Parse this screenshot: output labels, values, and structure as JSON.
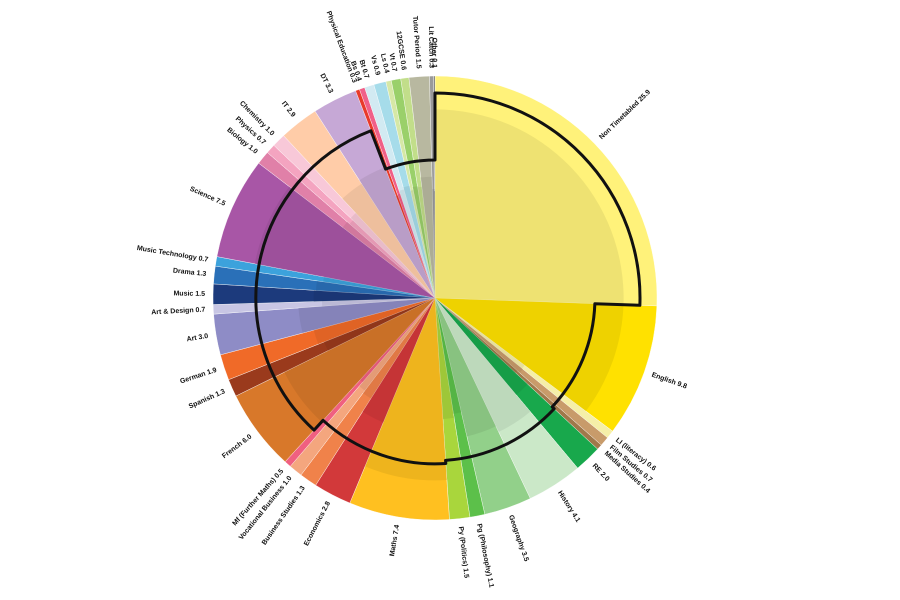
{
  "chart_data": {
    "type": "pie",
    "title": "",
    "unit": "",
    "start_angle_deg": 90,
    "direction": "clockwise",
    "slices": [
      {
        "label": "Non Timetabled",
        "value": 25.9,
        "color": "#FFF27A"
      },
      {
        "label": "English",
        "value": 9.8,
        "color": "#FFE100"
      },
      {
        "label": "LI (literacy)",
        "value": 0.6,
        "color": "#F5EFA8"
      },
      {
        "label": "Film Studies",
        "value": 0.7,
        "color": "#C89B6A"
      },
      {
        "label": "Media Studies",
        "value": 0.4,
        "color": "#A0784A"
      },
      {
        "label": "RE",
        "value": 2.0,
        "color": "#18A84C"
      },
      {
        "label": "History",
        "value": 4.1,
        "color": "#CBE8C8"
      },
      {
        "label": "Geography",
        "value": 3.5,
        "color": "#92D08A"
      },
      {
        "label": "Pg (Philosophy)",
        "value": 1.1,
        "color": "#5CC04A"
      },
      {
        "label": "Py (Politics)",
        "value": 1.5,
        "color": "#A9D63C"
      },
      {
        "label": "Maths",
        "value": 7.4,
        "color": "#FFC020"
      },
      {
        "label": "Economics",
        "value": 2.8,
        "color": "#D2393A"
      },
      {
        "label": "Business Studies",
        "value": 1.3,
        "color": "#F0824A"
      },
      {
        "label": "Vocational Business",
        "value": 1.0,
        "color": "#F4A67E"
      },
      {
        "label": "Mf (Further Maths)",
        "value": 0.5,
        "color": "#F06080"
      },
      {
        "label": "French",
        "value": 6.0,
        "color": "#D8782A"
      },
      {
        "label": "Spanish",
        "value": 1.3,
        "color": "#9A3A1C"
      },
      {
        "label": "German",
        "value": 1.9,
        "color": "#F06A28"
      },
      {
        "label": "Art",
        "value": 3.0,
        "color": "#8E8CC6"
      },
      {
        "label": "Art & Design",
        "value": 0.7,
        "color": "#C8C6E4"
      },
      {
        "label": "Music",
        "value": 1.5,
        "color": "#1C3A7C"
      },
      {
        "label": "Drama",
        "value": 1.3,
        "color": "#2A70B8"
      },
      {
        "label": "Music Technology",
        "value": 0.7,
        "color": "#3CA2DC"
      },
      {
        "label": "Science",
        "value": 7.5,
        "color": "#A856A6"
      },
      {
        "label": "Biology",
        "value": 1.0,
        "color": "#E080A8"
      },
      {
        "label": "Physics",
        "value": 0.7,
        "color": "#F4A4C0"
      },
      {
        "label": "Chemistry",
        "value": 1.0,
        "color": "#F8C8D8"
      },
      {
        "label": "IT",
        "value": 2.9,
        "color": "#FFCCA8"
      },
      {
        "label": "DT",
        "value": 3.3,
        "color": "#C6A8D6"
      },
      {
        "label": "Physical Education",
        "value": 0.3,
        "color": "#E83A2A"
      },
      {
        "label": "Bs",
        "value": 0.4,
        "color": "#F06088"
      },
      {
        "label": "Bt",
        "value": 0.7,
        "color": "#D2EAF2"
      },
      {
        "label": "Vs",
        "value": 0.9,
        "color": "#A6DCEA"
      },
      {
        "label": "Ls",
        "value": 0.4,
        "color": "#D6E8A6"
      },
      {
        "label": "Vt",
        "value": 0.7,
        "color": "#9AD06A"
      },
      {
        "label": "12GCSE",
        "value": 0.6,
        "color": "#C2DE8A"
      },
      {
        "label": "Tutor Period",
        "value": 1.5,
        "color": "#B8B8A0"
      },
      {
        "label": "Lit Catch",
        "value": 0.3,
        "color": "#9A9A9A"
      },
      {
        "label": "Other",
        "value": 0.1,
        "color": "#6A6A6A"
      }
    ],
    "labels": [
      "Non Timetabled 25.9",
      "English 9.8",
      "LI (literacy) 0.6",
      "Film Studies 0.7",
      "Media Studies 0.4",
      "RE 2.0",
      "History 4.1",
      "Geography 3.5",
      "Pg (Philosophy) 1.1",
      "Py (Politics) 1.5",
      "Maths 7.4",
      "Economics 2.8",
      "Business Studies 1.3",
      "Vocational Business 1.0",
      "Mf (Further Maths) 0.5",
      "French 6.0",
      "Spanish 1.3",
      "German 1.9",
      "Art 3.0",
      "Art & Design 0.7",
      "Music 1.5",
      "Drama 1.3",
      "Music Technology 0.7",
      "Science 7.5",
      "Biology 1.0",
      "Physics 0.7",
      "Chemistry 1.0",
      "IT 2.9",
      "DT 3.3",
      "Physical Education 0.3",
      "Bs 0.4",
      "Bt 0.7",
      "Vs 0.9",
      "Ls 0.4",
      "Vt 0.7",
      "12GCSE 0.6",
      "Tutor Period 1.5",
      "Lit Catch 0.3",
      "Other 0.1"
    ],
    "legend": "none"
  }
}
